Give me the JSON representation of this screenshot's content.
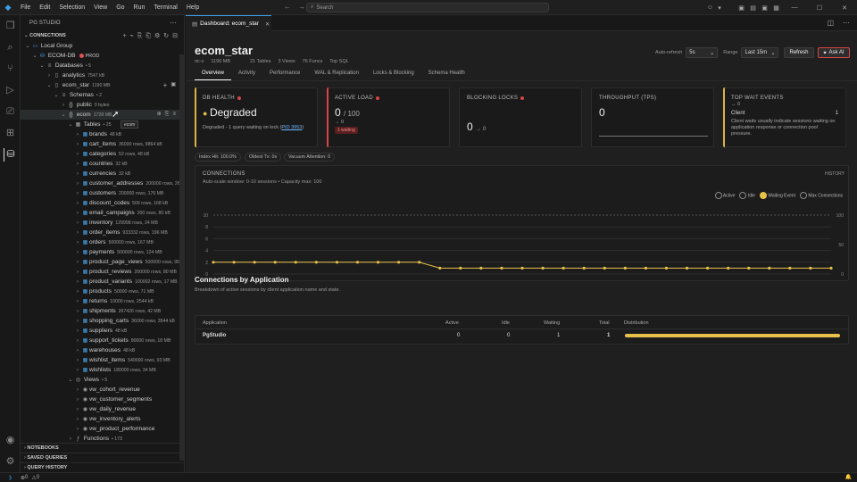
{
  "titlebar": {
    "menu": [
      "File",
      "Edit",
      "Selection",
      "View",
      "Go",
      "Run",
      "Terminal",
      "Help"
    ],
    "search_placeholder": "Search"
  },
  "sidebar": {
    "title": "PG STUDIO",
    "connections_label": "CONNECTIONS",
    "local_group": "Local Group",
    "connection": {
      "name": "ECOM-DB",
      "env": "PROD"
    },
    "databases": {
      "label": "Databases",
      "count": "• 5"
    },
    "db_analytics": {
      "name": "analytics",
      "size": "7547 kB"
    },
    "db_ecom_star": {
      "name": "ecom_star",
      "size": "1190 MB"
    },
    "schemas": {
      "label": "Schemas",
      "count": "• 2"
    },
    "schema_public": {
      "name": "public",
      "size": "0 bytes"
    },
    "schema_ecom": {
      "name": "ecom",
      "size": "1728 MB"
    },
    "tooltip": "ecom",
    "tables_label": "Tables",
    "tables_count": "• 25",
    "tables": [
      {
        "name": "brands",
        "meta": "48 kB"
      },
      {
        "name": "cart_items",
        "meta": "36000 rows, 9864 kB"
      },
      {
        "name": "categories",
        "meta": "52 rows, 48 kB"
      },
      {
        "name": "countries",
        "meta": "32 kB"
      },
      {
        "name": "currencies",
        "meta": "32 kB"
      },
      {
        "name": "customer_addresses",
        "meta": "200000 rows, 26 MB"
      },
      {
        "name": "customers",
        "meta": "200000 rows, 176 MB"
      },
      {
        "name": "discount_codes",
        "meta": "506 rows, 168 kB"
      },
      {
        "name": "email_campaigns",
        "meta": "200 rows, 80 kB"
      },
      {
        "name": "inventory",
        "meta": "129998 rows, 24 MB"
      },
      {
        "name": "order_items",
        "meta": "933332 rows, 196 MB"
      },
      {
        "name": "orders",
        "meta": "500000 rows, 167 MB"
      },
      {
        "name": "payments",
        "meta": "500000 rows, 124 MB"
      },
      {
        "name": "product_page_views",
        "meta": "500000 rows, 95 MB"
      },
      {
        "name": "product_reviews",
        "meta": "200000 rows, 80 MB"
      },
      {
        "name": "product_variants",
        "meta": "100002 rows, 17 MB"
      },
      {
        "name": "products",
        "meta": "50000 rows, 71 MB"
      },
      {
        "name": "returns",
        "meta": "10000 rows, 2544 kB"
      },
      {
        "name": "shipments",
        "meta": "267426 rows, 42 MB"
      },
      {
        "name": "shopping_carts",
        "meta": "36000 rows, 3544 kB"
      },
      {
        "name": "suppliers",
        "meta": "48 kB"
      },
      {
        "name": "support_tickets",
        "meta": "80000 rows, 18 MB"
      },
      {
        "name": "warehouses",
        "meta": "48 kB"
      },
      {
        "name": "wishlist_items",
        "meta": "540000 rows, 93 MB"
      },
      {
        "name": "wishlists",
        "meta": "180000 rows, 34 MB"
      }
    ],
    "views_label": "Views",
    "views_count": "• 5",
    "views": [
      "vw_cohort_revenue",
      "vw_customer_segments",
      "vw_daily_revenue",
      "vw_inventory_alerts",
      "vw_product_performance"
    ],
    "functions_label": "Functions",
    "functions_count": "• 173",
    "sections": [
      "NOTEBOOKS",
      "SAVED QUERIES",
      "QUERY HISTORY"
    ]
  },
  "editor": {
    "tab_label": "Dashboard: ecom_star",
    "db_title": "ecom_star",
    "sub": [
      "ric-v",
      "1190 MB",
      "21 Tables",
      "3 Views",
      "76 Funcs",
      "Top SQL"
    ],
    "auto_refresh_label": "Auto-refresh",
    "auto_refresh_value": "5s",
    "range_label": "Range",
    "range_value": "Last 15m",
    "refresh_label": "Refresh",
    "ask_ai_label": "Ask AI",
    "tabs": [
      "Overview",
      "Activity",
      "Performance",
      "WAL & Replication",
      "Locks & Blocking",
      "Schema Health"
    ],
    "active_tab": 0
  },
  "cards": {
    "health": {
      "title": "DB HEALTH",
      "value": "Degraded",
      "desc": "Degraded - 1 query waiting on lock ",
      "link": "PID 3953",
      "link_end": ")"
    },
    "active": {
      "title": "ACTIVE LOAD",
      "value": "0",
      "max": "/ 100",
      "trend": "→ 0",
      "badge": "1 waiting"
    },
    "locks": {
      "title": "BLOCKING LOCKS",
      "value": "0",
      "trend": "→ 0"
    },
    "throughput": {
      "title": "THROUGHPUT (TPS)",
      "value": "0"
    },
    "wait": {
      "title": "TOP WAIT EVENTS",
      "trend": "→ 0",
      "event": "Client",
      "count": "1",
      "desc": "Client waits usually indicate sessions waiting on application response or connection pool pressure."
    }
  },
  "pills": [
    "Index Hit: 100.0%",
    "Oldest Tx: 0s",
    "Vacuum Attention: 0"
  ],
  "connections_panel": {
    "title": "CONNECTIONS",
    "history_label": "HISTORY",
    "subtitle": "Auto-scale window: 0-10 sessions • Capacity max: 100",
    "legend": [
      "Active",
      "Idle",
      "Waiting Event",
      "Max Connections"
    ],
    "accent": "#e8c14a"
  },
  "chart_data": {
    "type": "line",
    "title": "CONNECTIONS",
    "ylim": [
      0,
      10
    ],
    "y_ticks": [
      "10",
      "8",
      "6",
      "4",
      "2",
      "0"
    ],
    "y2_ticks": [
      "100",
      "50",
      "0"
    ],
    "series": [
      {
        "name": "Active",
        "values": [
          0,
          0,
          0,
          0,
          0,
          0,
          0,
          0,
          0,
          0,
          0,
          0,
          0,
          0,
          0,
          0,
          0,
          0,
          0,
          0,
          0,
          0,
          0,
          0,
          0,
          0,
          0,
          0,
          0,
          0,
          0
        ]
      },
      {
        "name": "Idle",
        "values": [
          0,
          0,
          0,
          0,
          0,
          0,
          0,
          0,
          0,
          0,
          0,
          0,
          0,
          0,
          0,
          0,
          0,
          0,
          0,
          0,
          0,
          0,
          0,
          0,
          0,
          0,
          0,
          0,
          0,
          0,
          0
        ]
      },
      {
        "name": "Waiting Event",
        "values": [
          2,
          2,
          2,
          2,
          2,
          2,
          2,
          2,
          2,
          2,
          2,
          1,
          1,
          1,
          1,
          1,
          1,
          1,
          1,
          1,
          1,
          1,
          1,
          1,
          1,
          1,
          1,
          1,
          1,
          1,
          1
        ]
      }
    ]
  },
  "apps": {
    "title": "Connections by Application",
    "subtitle": "Breakdown of active sessions by client application name and state.",
    "headers": [
      "Application",
      "Active",
      "Idle",
      "Waiting",
      "Total",
      "Distribution"
    ],
    "rows": [
      {
        "name": "PgStudio",
        "active": "0",
        "idle": "0",
        "waiting": "1",
        "total": "1",
        "distribution": 1.0
      }
    ]
  },
  "status": {
    "errors": "0",
    "warnings": "0"
  }
}
